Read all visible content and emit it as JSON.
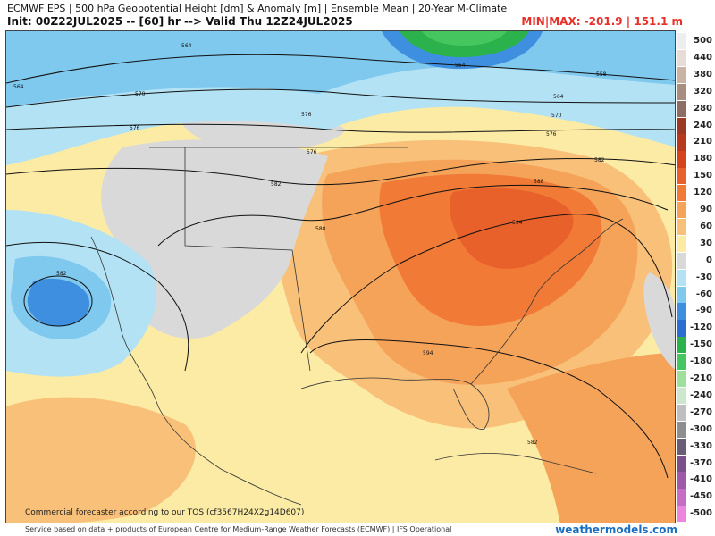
{
  "header": {
    "title": "ECMWF EPS | 500 hPa Geopotential Height [dm] & Anomaly [m] | Ensemble Mean | 20-Year M-Climate",
    "subtitle": "Init: 00Z22JUL2025 -- [60] hr --> Valid Thu 12Z24JUL2025",
    "minmax": "MIN|MAX: -201.9 | 151.1 m"
  },
  "legend": [
    {
      "label": "500",
      "color": "#eeeeee"
    },
    {
      "label": "440",
      "color": "#e8dcd8"
    },
    {
      "label": "380",
      "color": "#c9b3a4"
    },
    {
      "label": "320",
      "color": "#a88e7f"
    },
    {
      "label": "280",
      "color": "#8d6e62"
    },
    {
      "label": "240",
      "color": "#9a3a22"
    },
    {
      "label": "210",
      "color": "#b73a1e"
    },
    {
      "label": "180",
      "color": "#d4451c"
    },
    {
      "label": "150",
      "color": "#e8602a"
    },
    {
      "label": "120",
      "color": "#f07a36"
    },
    {
      "label": "90",
      "color": "#f6a35a"
    },
    {
      "label": "60",
      "color": "#f8c078"
    },
    {
      "label": "30",
      "color": "#fbeba4"
    },
    {
      "label": "0",
      "color": "#d9d9d9"
    },
    {
      "label": "-30",
      "color": "#b3e2f4"
    },
    {
      "label": "-60",
      "color": "#7fc8ee"
    },
    {
      "label": "-90",
      "color": "#3f8fe0"
    },
    {
      "label": "-120",
      "color": "#2a6fd0"
    },
    {
      "label": "-150",
      "color": "#2bb24c"
    },
    {
      "label": "-180",
      "color": "#46c65e"
    },
    {
      "label": "-210",
      "color": "#9edf9c"
    },
    {
      "label": "-240",
      "color": "#cde7cf"
    },
    {
      "label": "-270",
      "color": "#bfbfbf"
    },
    {
      "label": "-300",
      "color": "#8e8e8e"
    },
    {
      "label": "-330",
      "color": "#6a5d74"
    },
    {
      "label": "-370",
      "color": "#7c4f86"
    },
    {
      "label": "-410",
      "color": "#9e5aa8"
    },
    {
      "label": "-450",
      "color": "#c66dc6"
    },
    {
      "label": "-500",
      "color": "#ec86dc"
    }
  ],
  "contour_labels": [
    "564",
    "570",
    "564",
    "576",
    "582",
    "576",
    "576",
    "582",
    "588",
    "564",
    "558",
    "564",
    "570",
    "576",
    "582",
    "588",
    "594",
    "594",
    "582"
  ],
  "tos": "Commercial forecaster according to our TOS (cf3567H24X2g14D607)",
  "footer": "Service based on data + products of European Centre for Medium-Range Weather Forecasts (ECMWF) | IFS Operational",
  "brand": "weathermodels.com"
}
